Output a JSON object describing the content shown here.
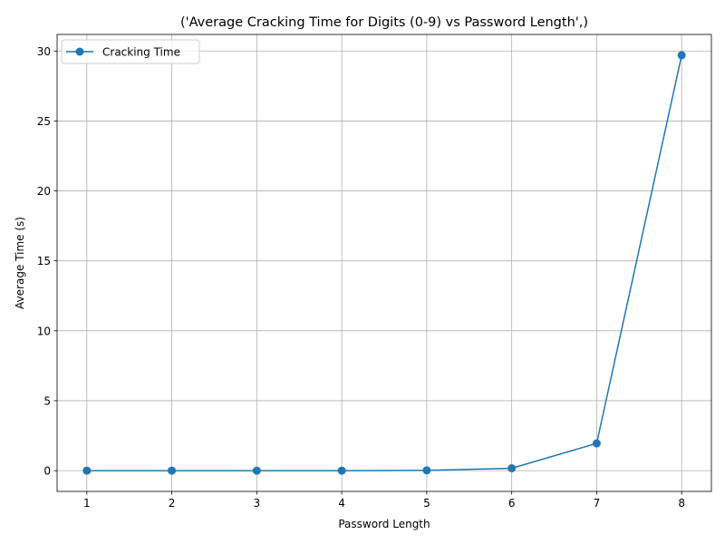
{
  "chart_data": {
    "type": "line",
    "title": "('Average Cracking Time for Digits (0-9) vs Password Length',)",
    "xlabel": "Password Length",
    "ylabel": "Average Time (s)",
    "x": [
      1,
      2,
      3,
      4,
      5,
      6,
      7,
      8
    ],
    "series": [
      {
        "name": "Cracking Time",
        "values": [
          0.0,
          0.0,
          0.0,
          0.0,
          0.02,
          0.17,
          1.95,
          29.7
        ],
        "color": "#1f77b4",
        "marker": "circle"
      }
    ],
    "xticks": [
      1,
      2,
      3,
      4,
      5,
      6,
      7,
      8
    ],
    "yticks": [
      0,
      5,
      10,
      15,
      20,
      25,
      30
    ],
    "xlim": [
      0.65,
      8.35
    ],
    "ylim": [
      -1.485,
      31.185
    ],
    "grid": true,
    "legend_position": "top-left"
  }
}
